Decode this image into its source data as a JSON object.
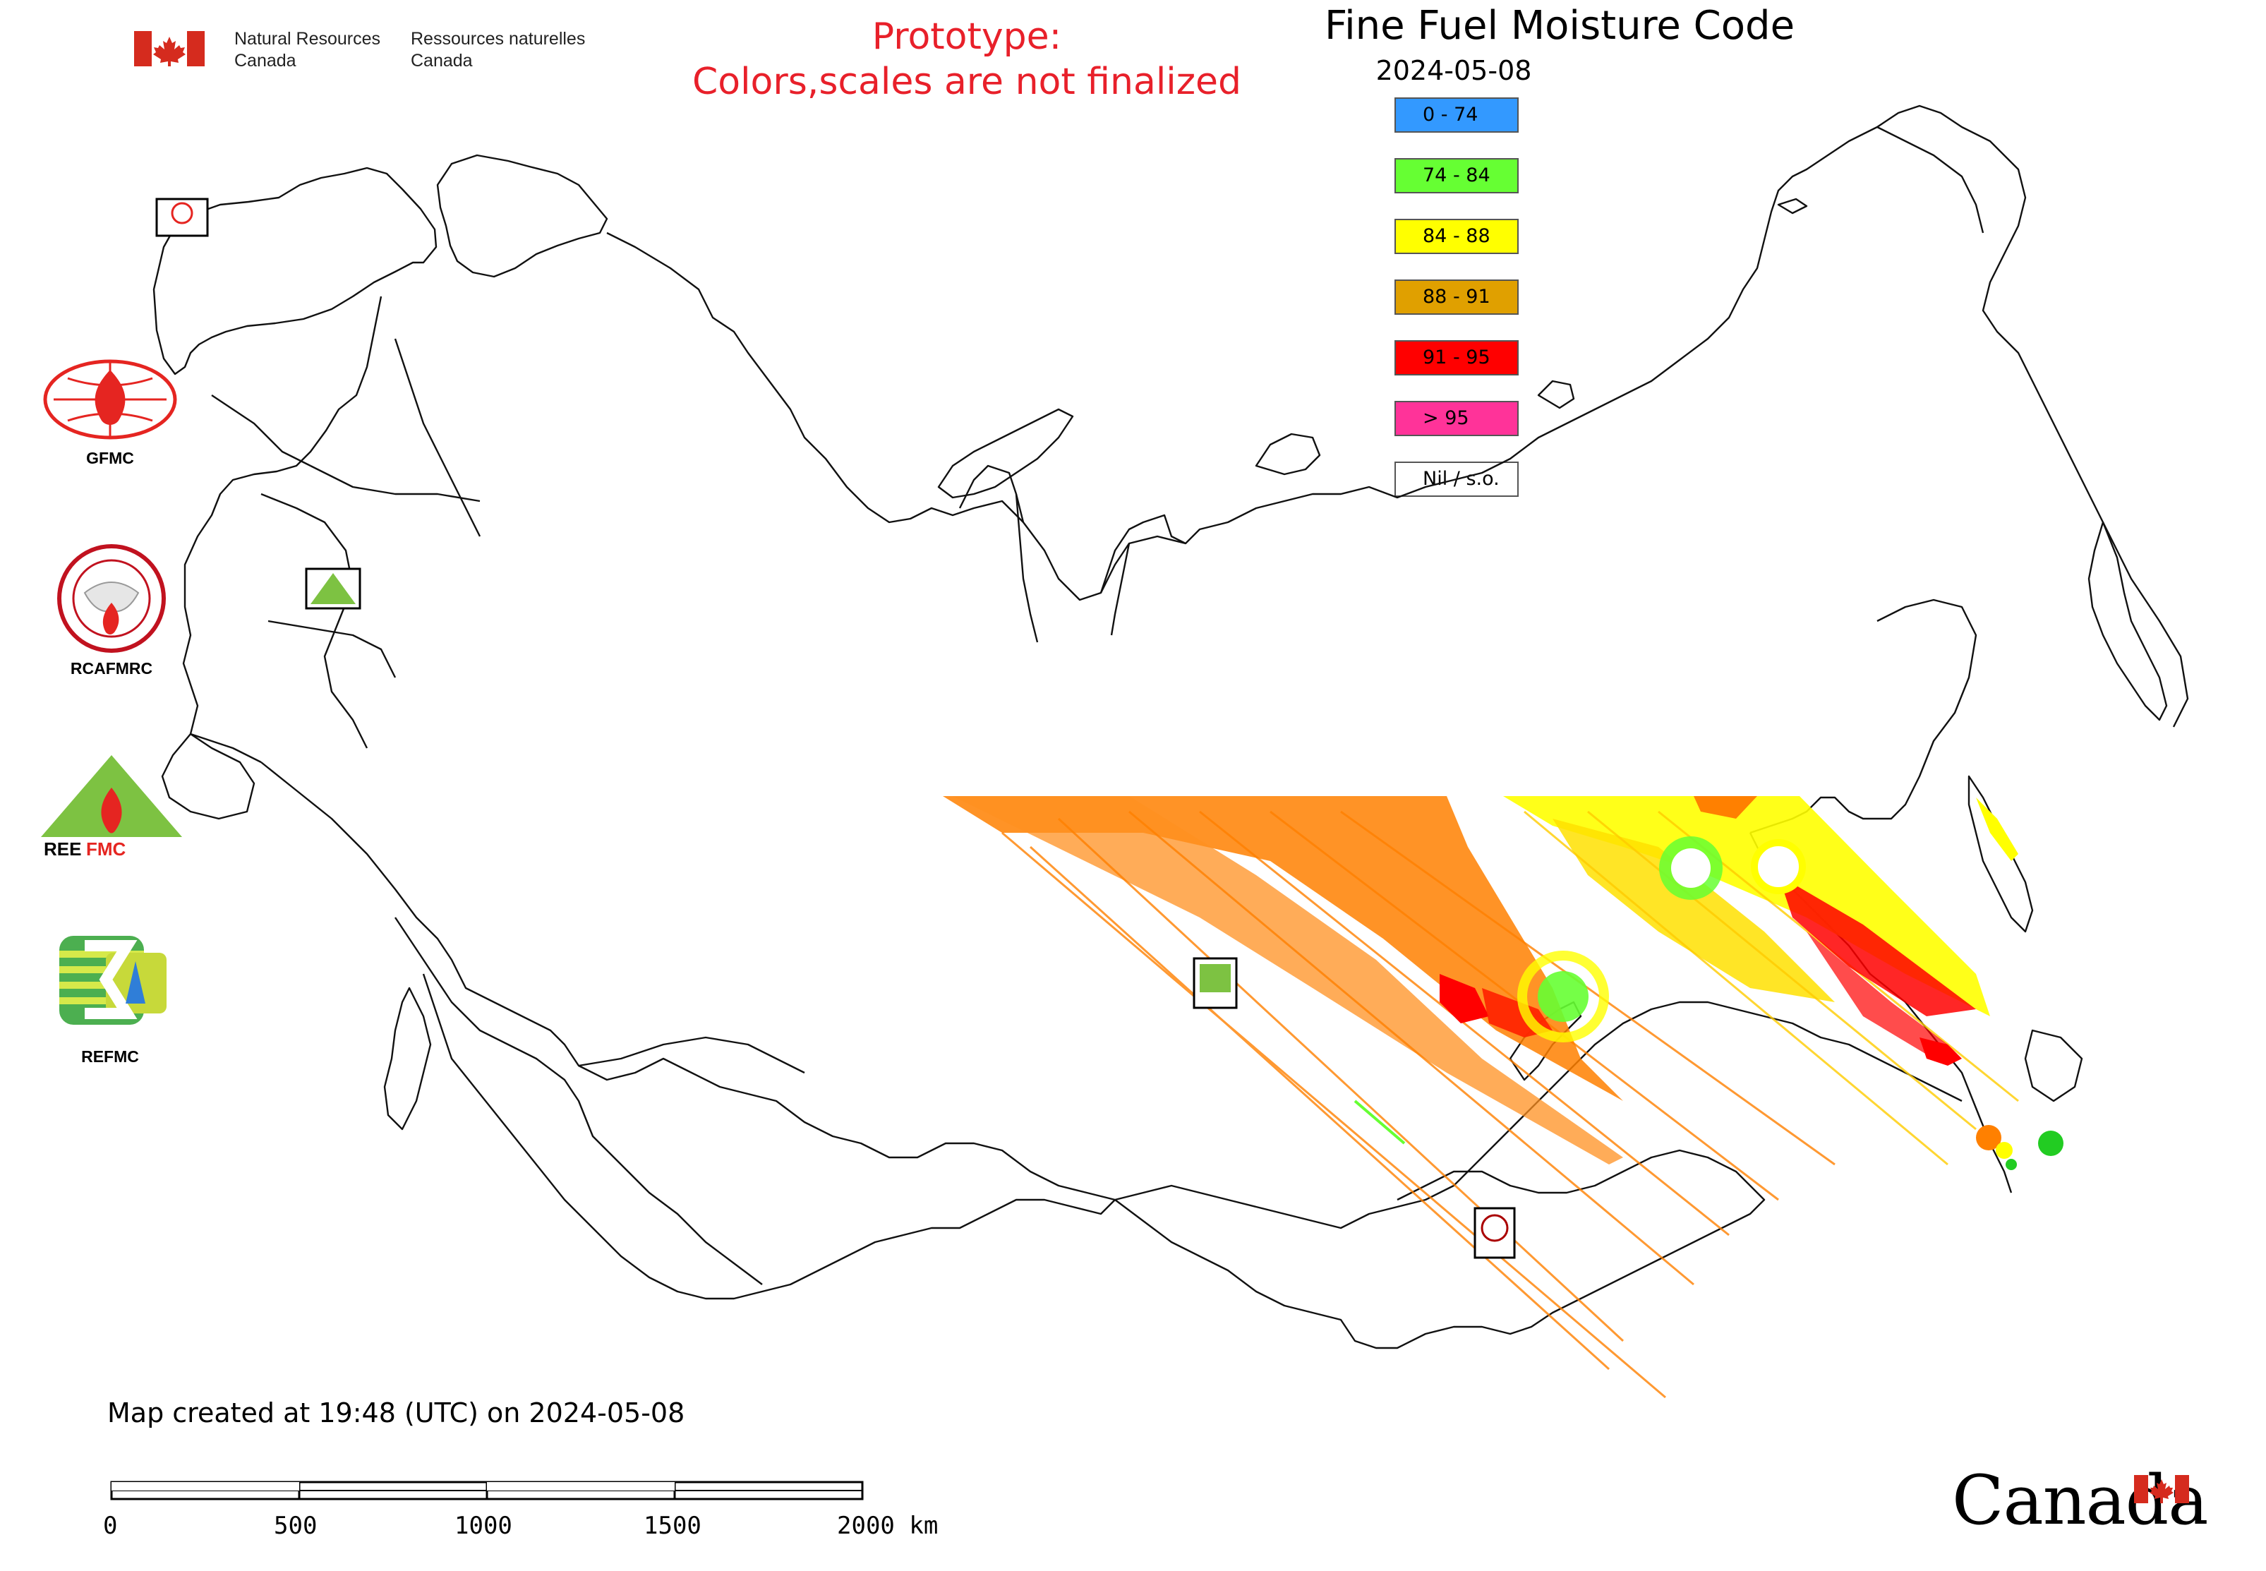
{
  "header": {
    "dept_en": [
      "Natural Resources",
      "Canada"
    ],
    "dept_fr": [
      "Ressources naturelles",
      "Canada"
    ]
  },
  "prototype_notice": [
    "Prototype:",
    "Colors,scales are not finalized"
  ],
  "map": {
    "title": "Fine Fuel Moisture Code",
    "date": "2024-05-08",
    "legend": [
      {
        "label": "0 - 74",
        "color": "#3399ff"
      },
      {
        "label": "74 - 84",
        "color": "#66ff33"
      },
      {
        "label": "84 - 88",
        "color": "#ffff00"
      },
      {
        "label": "88 - 91",
        "color": "#e0a000"
      },
      {
        "label": "91 - 95",
        "color": "#ff0000"
      },
      {
        "label": "> 95",
        "color": "#ff3399"
      },
      {
        "label": "Nil / s.o.",
        "color": "#ffffff"
      }
    ]
  },
  "organizations": [
    "GFMC",
    "RCAFMRC",
    "REEFMC",
    "REFMC"
  ],
  "footer_note": "Map created at 19:48 (UTC) on 2024-05-08",
  "scale_bar": {
    "labels": [
      "0",
      "500",
      "1000",
      "1500",
      "2000 km"
    ]
  },
  "wordmark": "Canada",
  "colors": {
    "prototype_text": "#e8202a",
    "canada_red": "#d52b1e",
    "fire_red": "#e52521",
    "logo_green": "#7dc242"
  }
}
